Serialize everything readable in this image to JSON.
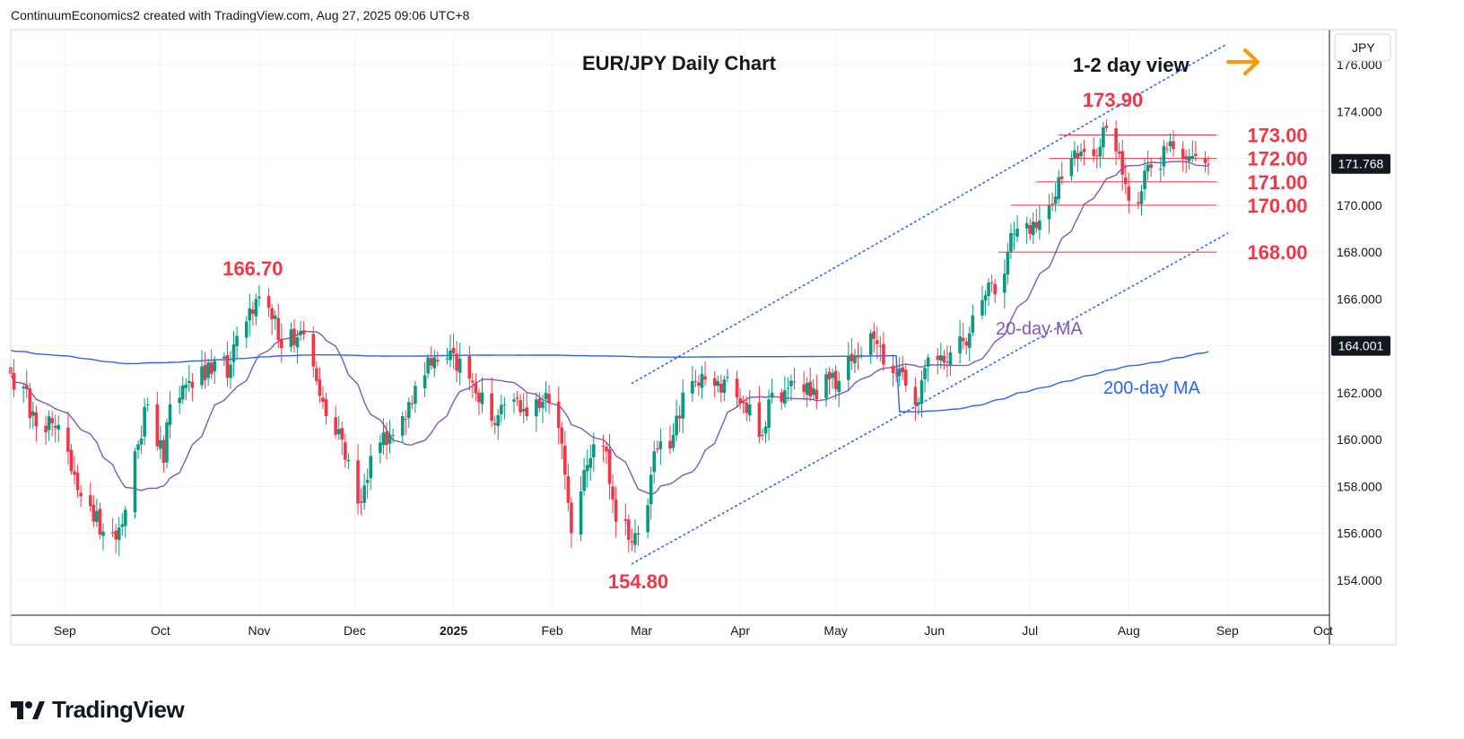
{
  "header": {
    "text": "ContinuumEconomics2 created with TradingView.com, Aug 27, 2025 09:06 UTC+8"
  },
  "footer": {
    "brand": "TradingView"
  },
  "colors": {
    "up": "#089981",
    "down": "#f23645",
    "ma20": "#7e57c2",
    "ma200": "#2962ff",
    "level": "#f23645",
    "channel": "#2962ff",
    "arrow": "#ff9800",
    "price_tag": "#131722",
    "ma_tag": "#131722"
  },
  "chart_data": {
    "type": "candlestick",
    "title": "EUR/JPY Daily Chart",
    "currency": "JPY",
    "view_label": "1-2 day view",
    "ylim": [
      152.5,
      177.5
    ],
    "y_ticks": [
      "154.000",
      "156.000",
      "158.000",
      "160.000",
      "162.000",
      "164.000",
      "166.000",
      "168.000",
      "170.000",
      "172.000",
      "174.000",
      "176.000"
    ],
    "x_ticks": [
      {
        "label": "Sep",
        "date": "2024-09-01"
      },
      {
        "label": "Oct",
        "date": "2024-10-01"
      },
      {
        "label": "Nov",
        "date": "2024-11-01"
      },
      {
        "label": "Dec",
        "date": "2024-12-01"
      },
      {
        "label": "2025",
        "date": "2025-01-01",
        "bold": true
      },
      {
        "label": "Feb",
        "date": "2025-02-01"
      },
      {
        "label": "Mar",
        "date": "2025-03-01"
      },
      {
        "label": "Apr",
        "date": "2025-04-01"
      },
      {
        "label": "May",
        "date": "2025-05-01"
      },
      {
        "label": "Jun",
        "date": "2025-06-01"
      },
      {
        "label": "Jul",
        "date": "2025-07-01"
      },
      {
        "label": "Aug",
        "date": "2025-08-01"
      },
      {
        "label": "Sep",
        "date": "2025-09-01"
      },
      {
        "label": "Oct",
        "date": "2025-10-01"
      }
    ],
    "x_range": [
      "2024-08-15",
      "2025-10-03"
    ],
    "anchors": [
      [
        "2024-08-15",
        162.8
      ],
      [
        "2024-08-22",
        161.2
      ],
      [
        "2024-08-29",
        160.5
      ],
      [
        "2024-09-04",
        158.5
      ],
      [
        "2024-09-10",
        156.5
      ],
      [
        "2024-09-16",
        156.0
      ],
      [
        "2024-09-20",
        157.0
      ],
      [
        "2024-09-24",
        159.8
      ],
      [
        "2024-09-27",
        161.5
      ],
      [
        "2024-10-02",
        159.0
      ],
      [
        "2024-10-04",
        161.5
      ],
      [
        "2024-10-10",
        162.5
      ],
      [
        "2024-10-17",
        162.8
      ],
      [
        "2024-10-23",
        163.2
      ],
      [
        "2024-10-29",
        165.6
      ],
      [
        "2024-10-31",
        166.0
      ],
      [
        "2024-11-06",
        165.3
      ],
      [
        "2024-11-08",
        163.9
      ],
      [
        "2024-11-15",
        164.5
      ],
      [
        "2024-11-22",
        161.0
      ],
      [
        "2024-11-27",
        160.0
      ],
      [
        "2024-12-03",
        157.3
      ],
      [
        "2024-12-06",
        159.3
      ],
      [
        "2024-12-13",
        160.2
      ],
      [
        "2024-12-18",
        161.6
      ],
      [
        "2024-12-24",
        163.5
      ],
      [
        "2024-12-31",
        163.8
      ],
      [
        "2025-01-06",
        162.6
      ],
      [
        "2025-01-13",
        160.8
      ],
      [
        "2025-01-17",
        161.5
      ],
      [
        "2025-01-24",
        161.0
      ],
      [
        "2025-01-30",
        162.0
      ],
      [
        "2025-02-03",
        160.5
      ],
      [
        "2025-02-05",
        158.5
      ],
      [
        "2025-02-07",
        156.0
      ],
      [
        "2025-02-11",
        158.7
      ],
      [
        "2025-02-14",
        159.8
      ],
      [
        "2025-02-18",
        159.5
      ],
      [
        "2025-02-21",
        156.5
      ],
      [
        "2025-02-28",
        156.0
      ],
      [
        "2025-03-03",
        157.2
      ],
      [
        "2025-03-05",
        159.5
      ],
      [
        "2025-03-11",
        160.2
      ],
      [
        "2025-03-14",
        162.0
      ],
      [
        "2025-03-19",
        162.3
      ],
      [
        "2025-03-25",
        162.5
      ],
      [
        "2025-03-31",
        161.8
      ],
      [
        "2025-04-04",
        161.5
      ],
      [
        "2025-04-08",
        160.2
      ],
      [
        "2025-04-11",
        162.0
      ],
      [
        "2025-04-16",
        162.2
      ],
      [
        "2025-04-24",
        162.2
      ],
      [
        "2025-05-02",
        162.5
      ],
      [
        "2025-05-07",
        163.6
      ],
      [
        "2025-05-13",
        164.3
      ],
      [
        "2025-05-16",
        163.2
      ],
      [
        "2025-05-23",
        162.3
      ],
      [
        "2025-05-27",
        161.6
      ],
      [
        "2025-05-30",
        163.5
      ],
      [
        "2025-06-05",
        163.3
      ],
      [
        "2025-06-10",
        164.2
      ],
      [
        "2025-06-13",
        165.3
      ],
      [
        "2025-06-18",
        166.7
      ],
      [
        "2025-06-20",
        166.2
      ],
      [
        "2025-06-24",
        168.0
      ],
      [
        "2025-06-27",
        169.0
      ],
      [
        "2025-07-02",
        169.3
      ],
      [
        "2025-07-07",
        170.0
      ],
      [
        "2025-07-10",
        171.2
      ],
      [
        "2025-07-14",
        172.0
      ],
      [
        "2025-07-17",
        172.3
      ],
      [
        "2025-07-21",
        172.1
      ],
      [
        "2025-07-23",
        172.5
      ],
      [
        "2025-07-25",
        173.3
      ],
      [
        "2025-07-29",
        172.2
      ],
      [
        "2025-07-31",
        170.9
      ],
      [
        "2025-08-01",
        170.2
      ],
      [
        "2025-08-05",
        170.6
      ],
      [
        "2025-08-08",
        171.6
      ],
      [
        "2025-08-13",
        172.4
      ],
      [
        "2025-08-18",
        172.0
      ],
      [
        "2025-08-21",
        172.1
      ],
      [
        "2025-08-25",
        171.8
      ],
      [
        "2025-08-26",
        171.768
      ]
    ],
    "last_price": "171.768",
    "ma200_value": "164.001",
    "levels": [
      {
        "label": "173.00",
        "value": 173.0,
        "from": "2025-07-10"
      },
      {
        "label": "172.00",
        "value": 172.0,
        "from": "2025-07-07"
      },
      {
        "label": "171.00",
        "value": 171.0,
        "from": "2025-07-03"
      },
      {
        "label": "170.00",
        "value": 170.0,
        "from": "2025-06-25"
      },
      {
        "label": "168.00",
        "value": 168.0,
        "from": "2025-06-21"
      }
    ],
    "annotations": [
      {
        "label": "173.90",
        "date": "2025-07-27",
        "value": 173.9
      },
      {
        "label": "166.70",
        "date": "2024-10-30",
        "value": 166.7
      },
      {
        "label": "154.80",
        "date": "2025-02-28",
        "value": 154.8
      }
    ],
    "channel": {
      "upper": [
        [
          "2025-02-26",
          162.4
        ],
        [
          "2025-09-01",
          176.9
        ]
      ],
      "lower": [
        [
          "2025-02-26",
          154.7
        ],
        [
          "2025-09-01",
          168.8
        ]
      ]
    },
    "ma_labels": {
      "ma20": "20-day MA",
      "ma200": "200-day MA"
    }
  }
}
